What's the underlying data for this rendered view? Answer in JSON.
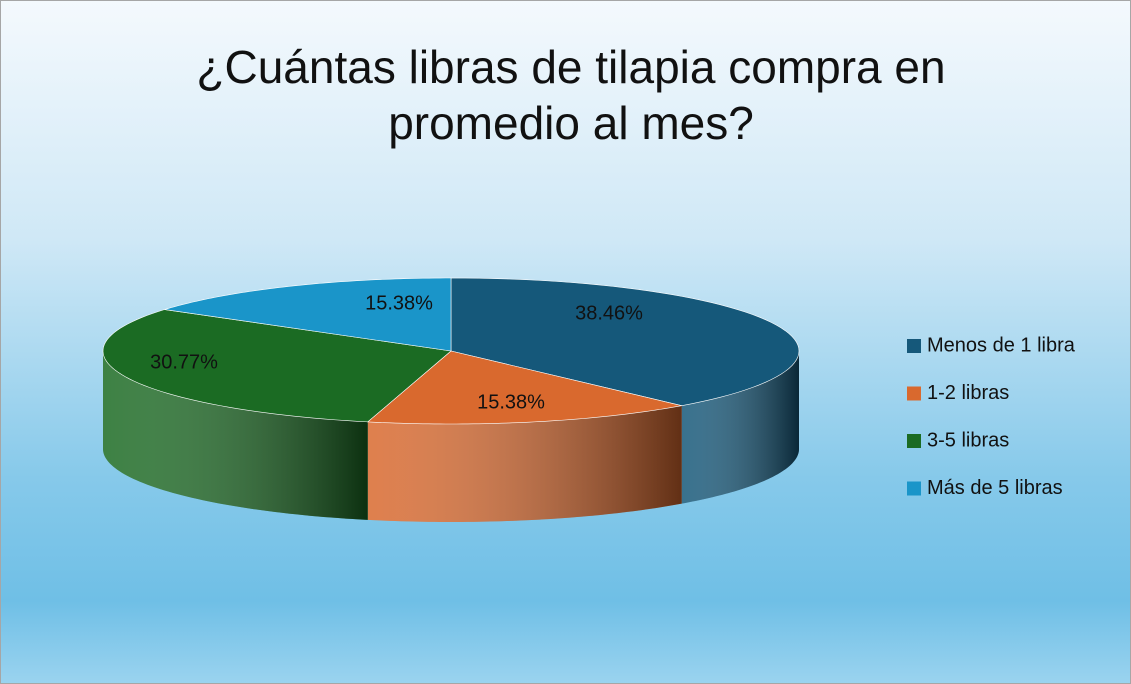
{
  "chart_data": {
    "type": "pie3d",
    "title": "¿Cuántas libras de tilapia compra en promedio al mes?",
    "categories": [
      "Menos de 1 libra",
      "1-2 libras",
      "3-5 libras",
      "Más de 5 libras"
    ],
    "values": [
      38.46,
      15.38,
      30.77,
      15.38
    ],
    "value_labels": [
      "38.46%",
      "15.38%",
      "30.77%",
      "15.38%"
    ],
    "colors": [
      "#15587a",
      "#d9692e",
      "#1b6b23",
      "#1a95c9"
    ],
    "legend": "right"
  }
}
